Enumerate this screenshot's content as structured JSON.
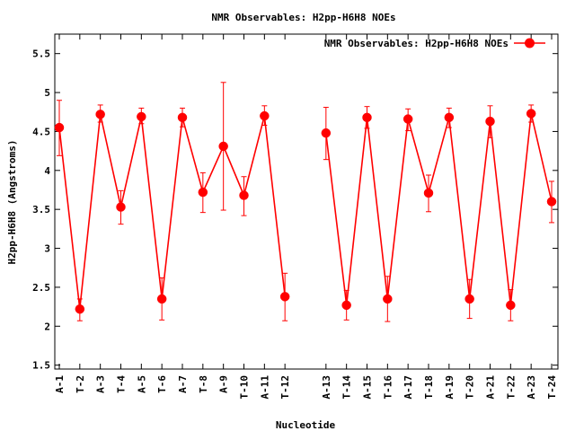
{
  "chart_data": {
    "type": "line",
    "title": "NMR Observables: H2pp-H6H8 NOEs",
    "xlabel": "Nucleotide",
    "ylabel": "H2pp-H6H8 (Angstroms)",
    "ylim": [
      1.45,
      5.75
    ],
    "yticks": [
      1.5,
      2,
      2.5,
      3,
      3.5,
      4,
      4.5,
      5,
      5.5
    ],
    "ytick_labels": [
      "1.5",
      "2",
      "2.5",
      "3",
      "3.5",
      "4",
      "4.5",
      "5",
      "5.5"
    ],
    "xlim": [
      1,
      25
    ],
    "grid": false,
    "legend_position": "top-right",
    "series": [
      {
        "name": "NMR Observables: H2pp-H6H8 NOEs",
        "color": "#ff0000",
        "segments": [
          [
            {
              "x": 1,
              "label": "A-1",
              "y": 4.55,
              "low": 4.19,
              "high": 4.9
            },
            {
              "x": 2,
              "label": "T-2",
              "y": 2.22,
              "low": 2.07,
              "high": 2.35
            },
            {
              "x": 3,
              "label": "A-3",
              "y": 4.72,
              "low": 4.62,
              "high": 4.84
            },
            {
              "x": 4,
              "label": "T-4",
              "y": 3.53,
              "low": 3.31,
              "high": 3.74
            },
            {
              "x": 5,
              "label": "A-5",
              "y": 4.69,
              "low": 4.6,
              "high": 4.8
            },
            {
              "x": 6,
              "label": "T-6",
              "y": 2.35,
              "low": 2.08,
              "high": 2.62
            },
            {
              "x": 7,
              "label": "A-7",
              "y": 4.68,
              "low": 4.56,
              "high": 4.8
            },
            {
              "x": 8,
              "label": "T-8",
              "y": 3.72,
              "low": 3.46,
              "high": 3.97
            },
            {
              "x": 9,
              "label": "A-9",
              "y": 4.31,
              "low": 3.49,
              "high": 5.13
            },
            {
              "x": 10,
              "label": "T-10",
              "y": 3.68,
              "low": 3.42,
              "high": 3.92
            },
            {
              "x": 11,
              "label": "A-11",
              "y": 4.7,
              "low": 4.58,
              "high": 4.83
            },
            {
              "x": 12,
              "label": "T-12",
              "y": 2.38,
              "low": 2.07,
              "high": 2.68
            }
          ],
          [
            {
              "x": 14,
              "label": "A-13",
              "y": 4.48,
              "low": 4.14,
              "high": 4.81
            },
            {
              "x": 15,
              "label": "T-14",
              "y": 2.27,
              "low": 2.08,
              "high": 2.46
            },
            {
              "x": 16,
              "label": "A-15",
              "y": 4.68,
              "low": 4.54,
              "high": 4.82
            },
            {
              "x": 17,
              "label": "T-16",
              "y": 2.35,
              "low": 2.06,
              "high": 2.64
            },
            {
              "x": 18,
              "label": "A-17",
              "y": 4.66,
              "low": 4.51,
              "high": 4.79
            },
            {
              "x": 19,
              "label": "T-18",
              "y": 3.71,
              "low": 3.47,
              "high": 3.94
            },
            {
              "x": 20,
              "label": "A-19",
              "y": 4.68,
              "low": 4.55,
              "high": 4.8
            },
            {
              "x": 21,
              "label": "T-20",
              "y": 2.35,
              "low": 2.1,
              "high": 2.6
            },
            {
              "x": 22,
              "label": "A-21",
              "y": 4.63,
              "low": 4.42,
              "high": 4.83
            },
            {
              "x": 23,
              "label": "T-22",
              "y": 2.27,
              "low": 2.07,
              "high": 2.47
            },
            {
              "x": 24,
              "label": "A-23",
              "y": 4.73,
              "low": 4.62,
              "high": 4.84
            },
            {
              "x": 25,
              "label": "T-24",
              "y": 3.6,
              "low": 3.33,
              "high": 3.86
            }
          ]
        ]
      }
    ]
  }
}
